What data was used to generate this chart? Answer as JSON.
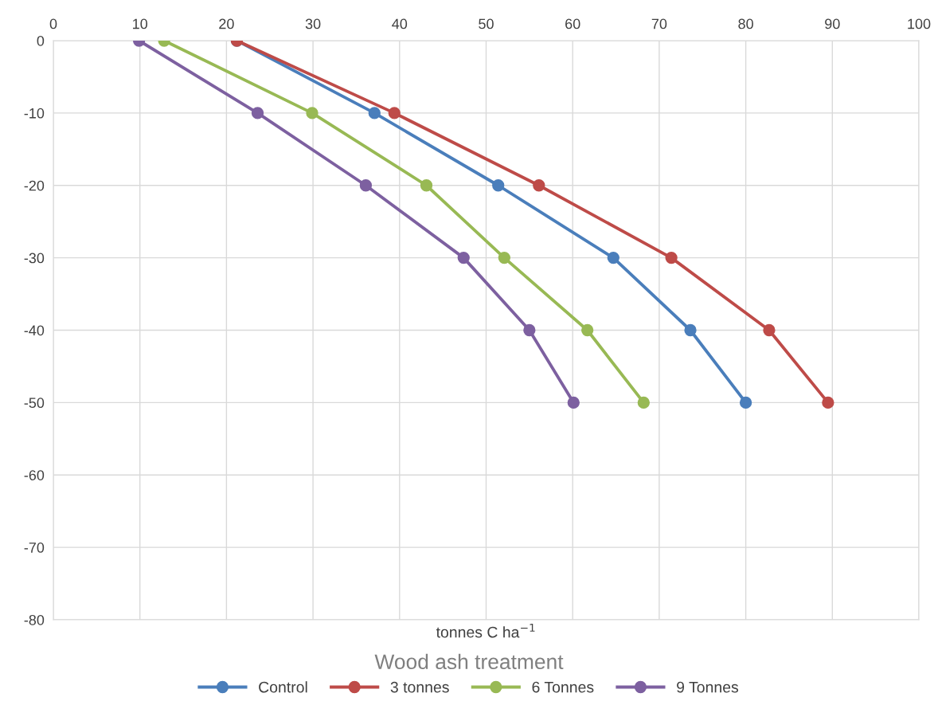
{
  "chart_data": {
    "type": "line",
    "title": "Wood ash treatment",
    "xlabel": "tonnes C ha$^{−1}$",
    "marker": "circle",
    "line_style": "solid",
    "grid": true,
    "legend": "bottom",
    "xlim": [
      0,
      100
    ],
    "xticks": [
      0,
      10,
      20,
      30,
      40,
      50,
      60,
      70,
      80,
      90,
      100
    ],
    "ylim": [
      -80,
      0
    ],
    "yticks": [
      -80,
      -70,
      -60,
      -50,
      -40,
      -30,
      -20,
      -10,
      0
    ],
    "series": [
      {
        "name": "Control",
        "color": "#4a7ebb",
        "x": [
          21.2,
          37.1,
          51.4,
          64.7,
          73.6,
          80.0
        ],
        "values": [
          0,
          -10,
          -20,
          -30,
          -40,
          -50
        ]
      },
      {
        "name": "3 tonnes",
        "color": "#be4b48",
        "x": [
          21.2,
          39.4,
          56.1,
          71.4,
          82.7,
          89.5
        ],
        "values": [
          0,
          -10,
          -20,
          -30,
          -40,
          -50
        ]
      },
      {
        "name": "6 Tonnes",
        "color": "#98b954",
        "x": [
          12.8,
          29.9,
          43.1,
          52.1,
          61.7,
          68.2
        ],
        "values": [
          0,
          -10,
          -20,
          -30,
          -40,
          -50
        ]
      },
      {
        "name": "9 Tonnes",
        "color": "#7d60a0",
        "x": [
          9.9,
          23.6,
          36.1,
          47.4,
          55.0,
          60.1
        ],
        "values": [
          0,
          -10,
          -20,
          -30,
          -40,
          -50
        ]
      }
    ]
  }
}
